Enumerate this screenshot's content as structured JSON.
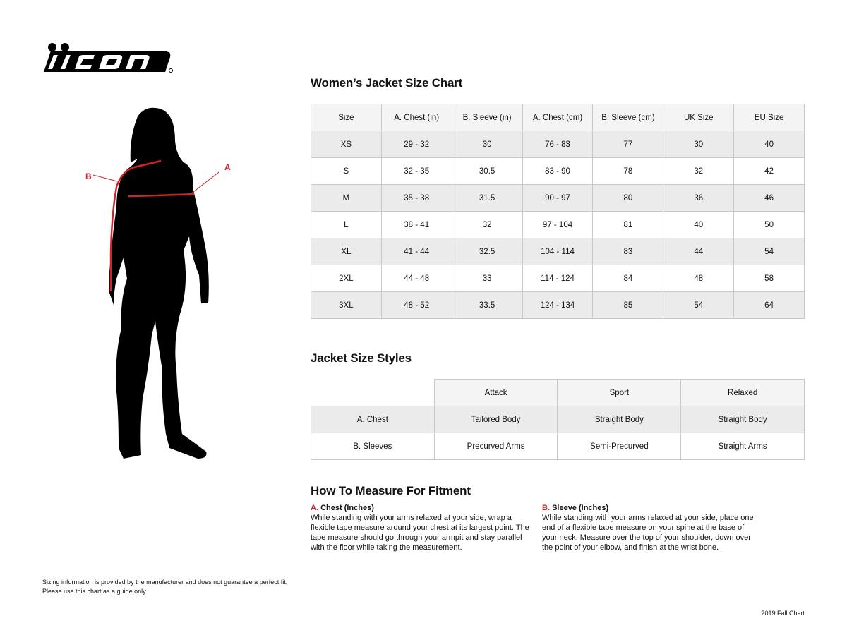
{
  "brand": {
    "logo_text": "icon"
  },
  "figure": {
    "label_a": "A",
    "label_b": "B",
    "accent_color": "#d1232a"
  },
  "size_chart": {
    "title": "Women’s Jacket Size Chart",
    "headers": [
      "Size",
      "A. Chest (in)",
      "B. Sleeve (in)",
      "A. Chest (cm)",
      "B. Sleeve (cm)",
      "UK Size",
      "EU Size"
    ],
    "rows": [
      [
        "XS",
        "29 - 32",
        "30",
        "76 - 83",
        "77",
        "30",
        "40"
      ],
      [
        "S",
        "32 - 35",
        "30.5",
        "83 - 90",
        "78",
        "32",
        "42"
      ],
      [
        "M",
        "35 - 38",
        "31.5",
        "90 - 97",
        "80",
        "36",
        "46"
      ],
      [
        "L",
        "38 - 41",
        "32",
        "97 - 104",
        "81",
        "40",
        "50"
      ],
      [
        "XL",
        "41 - 44",
        "32.5",
        "104 - 114",
        "83",
        "44",
        "54"
      ],
      [
        "2XL",
        "44 - 48",
        "33",
        "114 - 124",
        "84",
        "48",
        "58"
      ],
      [
        "3XL",
        "48 - 52",
        "33.5",
        "124 - 134",
        "85",
        "54",
        "64"
      ]
    ]
  },
  "styles": {
    "title": "Jacket Size Styles",
    "headers": [
      "Attack",
      "Sport",
      "Relaxed"
    ],
    "rows": [
      {
        "label": "A. Chest",
        "values": [
          "Tailored Body",
          "Straight Body",
          "Straight Body"
        ]
      },
      {
        "label": "B. Sleeves",
        "values": [
          "Precurved Arms",
          "Semi-Precurved",
          "Straight Arms"
        ]
      }
    ]
  },
  "measure": {
    "title": "How To Measure For Fitment",
    "chest": {
      "letter": "A.",
      "title": "Chest (Inches)",
      "text": "While standing with your arms relaxed at your side, wrap a flexible tape measure around your chest at its largest point. The tape measure should go through your armpit and stay parallel with the floor while taking the measurement."
    },
    "sleeve": {
      "letter": "B.",
      "title": "Sleeve (Inches)",
      "text": "While standing with your arms relaxed at your side, place one end of a flexible tape measure on your spine at the base of your neck. Measure over the top of your shoulder, down over the point of your elbow, and finish at the wrist bone."
    }
  },
  "disclaimer": {
    "line1": "Sizing information is provided by the manufacturer and does not guarantee a perfect fit.",
    "line2": "Please use this chart as a guide only"
  },
  "footer": "2019 Fall Chart"
}
